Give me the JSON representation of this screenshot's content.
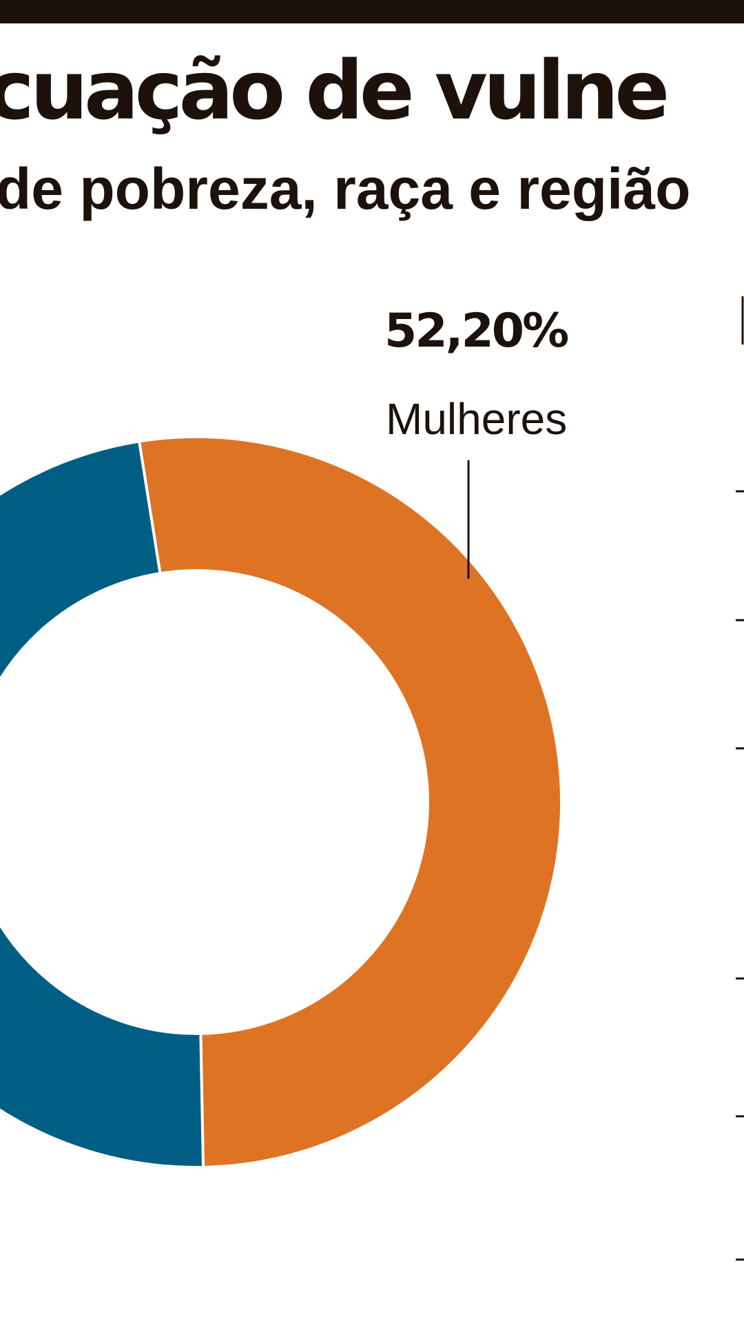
{
  "header": {
    "title": "cuação de vulne",
    "subtitle": "de pobreza, raça e região"
  },
  "colors": {
    "women": "#df7324",
    "men": "#005e85",
    "text": "#1c120b",
    "background": "#ffffff"
  },
  "chart_data": {
    "type": "pie",
    "donut": true,
    "slices": [
      {
        "label": "Mulheres",
        "value": 52.2,
        "value_label": "52,20%",
        "color": "#df7324"
      },
      {
        "label": "",
        "value": 47.8,
        "color": "#005e85"
      }
    ]
  }
}
